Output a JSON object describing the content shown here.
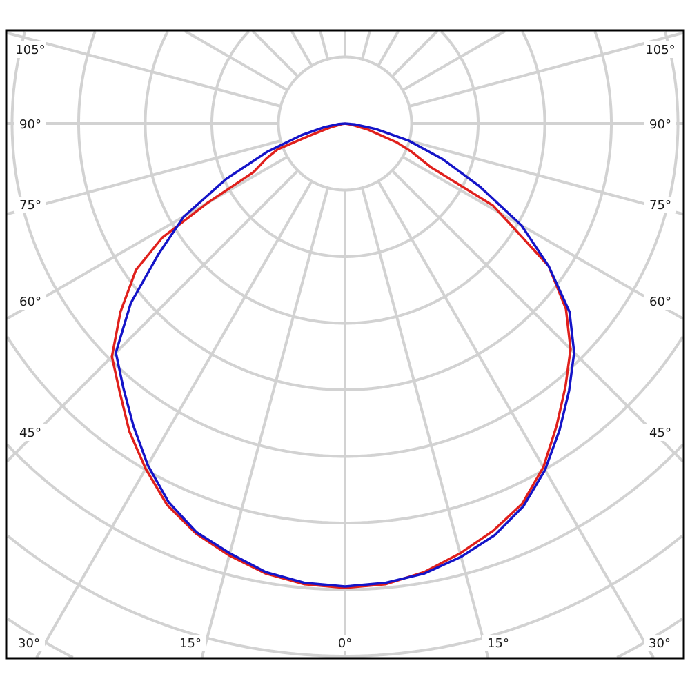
{
  "chart_data": {
    "type": "polar-line",
    "title": "",
    "angle_unit": "degrees",
    "angle_reference": "0° points straight down, angles increase toward both sides",
    "radial_axis_labels": "none printed",
    "grid": true,
    "grid_angle_step": 15,
    "left_angle_labels": [
      "105°",
      "90°",
      "75°",
      "60°",
      "45°"
    ],
    "right_angle_labels": [
      "105°",
      "90°",
      "75°",
      "60°",
      "45°"
    ],
    "bottom_angle_labels": [
      "30°",
      "15°",
      "0°",
      "15°",
      "30°"
    ],
    "value_unit": "relative intensity (% of 0° value, estimated)",
    "series": [
      {
        "color": "#e0201c",
        "left": [
          [
            0,
            100.3
          ],
          [
            5,
            99.9
          ],
          [
            10,
            98.7
          ],
          [
            15,
            96.6
          ],
          [
            20,
            94.2
          ],
          [
            25,
            90.9
          ],
          [
            30,
            86.1
          ],
          [
            35,
            81.2
          ],
          [
            40,
            75.7
          ],
          [
            45,
            71.2
          ],
          [
            50,
            63.3
          ],
          [
            55,
            55.1
          ],
          [
            58,
            46.6
          ],
          [
            60,
            34.3
          ],
          [
            62,
            22.4
          ],
          [
            66,
            18.6
          ],
          [
            69,
            15.6
          ],
          [
            71,
            8.2
          ],
          [
            75,
            3.3
          ],
          [
            80,
            0.7
          ],
          [
            85,
            0
          ]
        ],
        "right": [
          [
            0,
            100.3
          ],
          [
            5,
            99.9
          ],
          [
            10,
            98.4
          ],
          [
            15,
            96.1
          ],
          [
            20,
            93.6
          ],
          [
            25,
            90.6
          ],
          [
            30,
            85.7
          ],
          [
            35,
            79.7
          ],
          [
            40,
            74.1
          ],
          [
            45,
            68.9
          ],
          [
            50,
            62.3
          ],
          [
            55,
            53.7
          ],
          [
            58,
            43.5
          ],
          [
            61,
            36.5
          ],
          [
            63,
            20.9
          ],
          [
            67,
            15.6
          ],
          [
            70,
            11.9
          ],
          [
            75,
            5.2
          ],
          [
            80,
            1.5
          ],
          [
            85,
            0
          ]
        ]
      },
      {
        "color": "#1414c8",
        "left": [
          [
            0,
            100
          ],
          [
            5,
            99.6
          ],
          [
            10,
            98.4
          ],
          [
            15,
            96.1
          ],
          [
            20,
            93.9
          ],
          [
            25,
            90.2
          ],
          [
            30,
            85.2
          ],
          [
            35,
            79.7
          ],
          [
            40,
            74.5
          ],
          [
            45,
            70.0
          ],
          [
            50,
            60.4
          ],
          [
            55,
            49.2
          ],
          [
            60,
            40.2
          ],
          [
            65,
            28.3
          ],
          [
            70,
            17.9
          ],
          [
            75,
            9.7
          ],
          [
            80,
            4.5
          ],
          [
            85,
            1.5
          ],
          [
            90,
            0
          ]
        ],
        "right": [
          [
            0,
            100
          ],
          [
            5,
            99.6
          ],
          [
            10,
            98.7
          ],
          [
            15,
            96.9
          ],
          [
            20,
            94.6
          ],
          [
            25,
            91.2
          ],
          [
            30,
            86.4
          ],
          [
            35,
            80.8
          ],
          [
            40,
            75.3
          ],
          [
            45,
            70.0
          ],
          [
            50,
            63.3
          ],
          [
            55,
            53.7
          ],
          [
            60,
            44.0
          ],
          [
            65,
            32.0
          ],
          [
            70,
            22.4
          ],
          [
            75,
            14.2
          ],
          [
            80,
            6.7
          ],
          [
            85,
            2.2
          ],
          [
            90,
            0
          ]
        ]
      }
    ]
  }
}
